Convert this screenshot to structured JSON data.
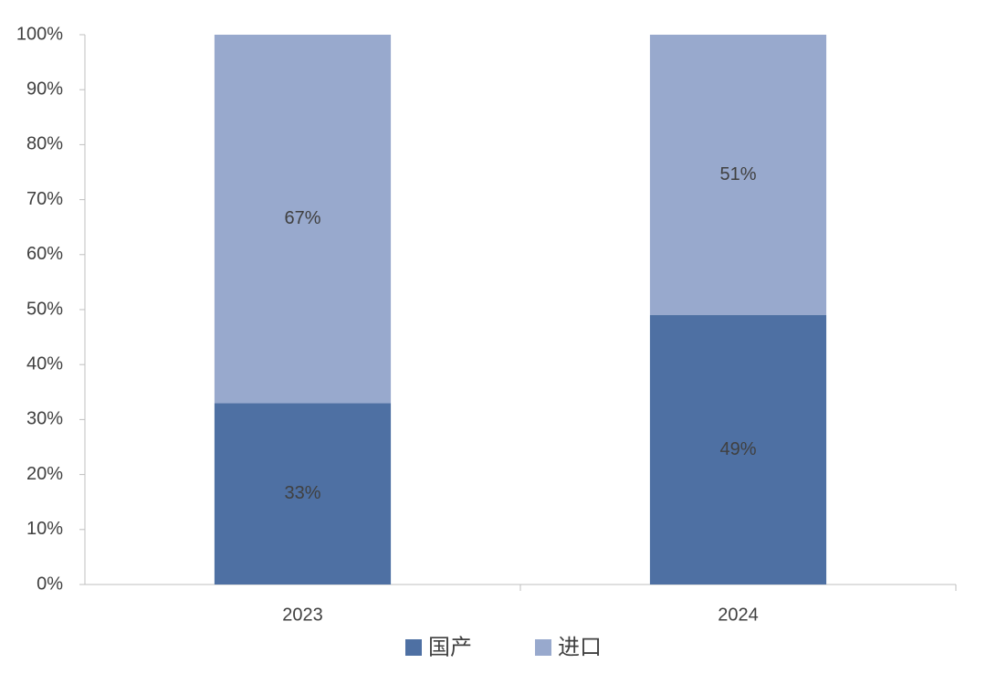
{
  "chart_data": {
    "type": "stacked-bar",
    "categories": [
      "2023",
      "2024"
    ],
    "series": [
      {
        "name": "国产",
        "color": "#4e70a3",
        "values": [
          33,
          49
        ],
        "value_labels": [
          "33%",
          "49%"
        ]
      },
      {
        "name": "进口",
        "color": "#98a9cd",
        "values": [
          67,
          51
        ],
        "value_labels": [
          "67%",
          "51%"
        ]
      }
    ],
    "ylim": [
      0,
      100
    ],
    "yticks": [
      {
        "value": 0,
        "label": "0%"
      },
      {
        "value": 10,
        "label": "10%"
      },
      {
        "value": 20,
        "label": "20%"
      },
      {
        "value": 30,
        "label": "30%"
      },
      {
        "value": 40,
        "label": "40%"
      },
      {
        "value": 50,
        "label": "50%"
      },
      {
        "value": 60,
        "label": "60%"
      },
      {
        "value": 70,
        "label": "70%"
      },
      {
        "value": 80,
        "label": "80%"
      },
      {
        "value": 90,
        "label": "90%"
      },
      {
        "value": 100,
        "label": "100%"
      }
    ],
    "legend": "bottom"
  }
}
